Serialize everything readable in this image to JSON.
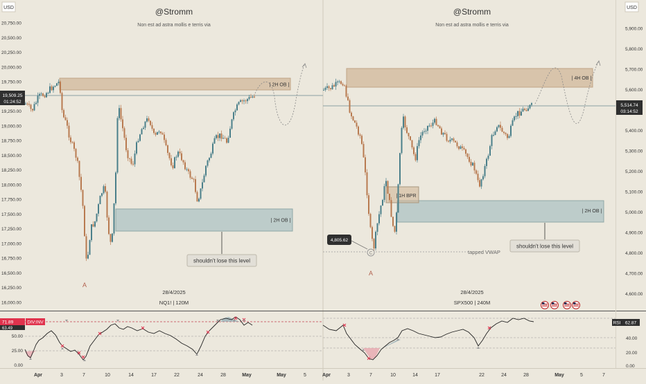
{
  "colors": {
    "background": "#ece8dd",
    "up": "#4a7f8a",
    "down": "#b87a50",
    "ob_brown": "#d2b89a",
    "ob_gray": "#aec3c3",
    "price_tag": "#2f2f2f",
    "rsi_line": "#222222",
    "rsi_alert": "#e0334d"
  },
  "left": {
    "currency": "USD",
    "title": "@Stromm",
    "subtitle": "Non est ad astra mollis e terris via",
    "date": "28/4/2025",
    "symbol_tf": "NQ1! | 120M",
    "price_tag": "19,509.25",
    "countdown": "01:24:52",
    "ob_top_label": "| 2H OB |",
    "ob_bottom_label": "| 2H OB |",
    "callout": "shouldn't lose this level",
    "wave_label": "A",
    "price_ticks": [
      "20,750.00",
      "20,500.00",
      "20,250.00",
      "20,000.00",
      "19,750.00",
      "19,500.00",
      "19,250.00",
      "19,000.00",
      "18,750.00",
      "18,500.00",
      "18,250.00",
      "18,000.00",
      "17,750.00",
      "17,500.00",
      "17,250.00",
      "17,000.00",
      "16,750.00",
      "16,500.00",
      "16,250.00",
      "16,000.00"
    ],
    "rsi_value": "71.89",
    "rsi_label": "DIV:INV",
    "rsi_second": "63.49",
    "rsi_ticks": [
      "50.00",
      "25.00",
      "0.00"
    ],
    "time_ticks": [
      "Apr",
      "3",
      "7",
      "10",
      "14",
      "17",
      "22",
      "24",
      "28",
      "May",
      "5"
    ]
  },
  "right": {
    "currency": "USD",
    "title": "@Stromm",
    "subtitle": "Non est ad astra mollis e terris via",
    "date": "28/4/2025",
    "symbol_tf": "SPX500 | 240M",
    "price_tag": "5,514.74",
    "countdown": "03:14:52",
    "ob_top_label": "| 4H OB |",
    "ob_bottom_label": "| 2H OB |",
    "bpr_label": "| 1H BPR",
    "low_tag": "4,805.62",
    "vwap_label": "tapped VWAP",
    "callout": "shouldn't lose this level",
    "wave_label": "A",
    "anchor_label": "C",
    "price_ticks": [
      "5,900.00",
      "5,800.00",
      "5,700.00",
      "5,600.00",
      "5,500.00",
      "5,400.00",
      "5,300.00",
      "5,200.00",
      "5,100.00",
      "5,000.00",
      "4,900.00",
      "4,800.00",
      "4,700.00",
      "4,600.00"
    ],
    "rsi_name": "RSI",
    "rsi_value": "62.87",
    "rsi_ticks": [
      "40.00",
      "20.00",
      "0.00"
    ],
    "time_ticks": [
      "Apr",
      "3",
      "7",
      "10",
      "14",
      "17",
      "22",
      "24",
      "28",
      "May",
      "5",
      "7"
    ]
  }
}
